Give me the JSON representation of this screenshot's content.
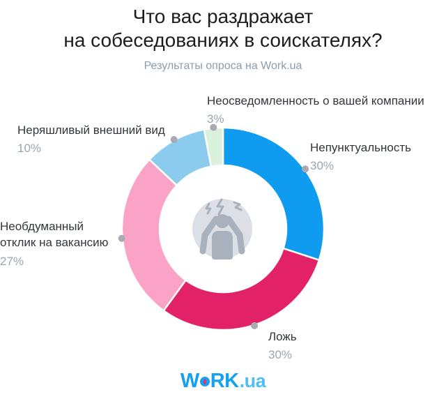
{
  "header": {
    "title_line1": "Что вас раздражает",
    "title_line2": "на собеседованиях в соискателях?",
    "subtitle": "Результаты опроса на Work.ua"
  },
  "chart_data": {
    "type": "pie",
    "variant": "donut",
    "title": "Что вас раздражает на собеседованиях в соискателях?",
    "source": "Результаты опроса на Work.ua",
    "units": "%",
    "start_angle_deg": 0,
    "direction": "clockwise",
    "segments": [
      {
        "id": "unpunctuality",
        "label": "Непунктуальность",
        "value": 30,
        "percent_label": "30%",
        "color": "#0f9cf0"
      },
      {
        "id": "lying",
        "label": "Ложь",
        "value": 30,
        "percent_label": "30%",
        "color": "#e32166"
      },
      {
        "id": "thoughtless-application",
        "label": "Необдуманный отклик на вакансию",
        "value": 27,
        "percent_label": "27%",
        "color": "#faa3c6"
      },
      {
        "id": "sloppy-appearance",
        "label": "Неряшливый внешний вид",
        "value": 10,
        "percent_label": "10%",
        "color": "#8bcbee"
      },
      {
        "id": "company-unawareness",
        "label": "Неосведомленность о вашей компании",
        "value": 3,
        "percent_label": "3%",
        "color": "#d9f1dd"
      }
    ],
    "marker_color": "#a9abb0",
    "center_circle_color": "#dce0e6",
    "center_icon_color": "#a9b1bc",
    "center_icon": "stressed-person-icon",
    "legend": "none",
    "grid": false
  },
  "footer": {
    "logo": {
      "part1": "W",
      "part2": "RK",
      "suffix": ".ua"
    }
  },
  "colors": {
    "background": "#ffffff",
    "title": "#1d1d1f",
    "subtitle": "#8c9cab",
    "label": "#32363b",
    "percent": "#98a5b1",
    "logo_blue": "#14a1ef",
    "logo_light_blue": "#4dbff4",
    "logo_dot_pink": "#ed2d71"
  }
}
